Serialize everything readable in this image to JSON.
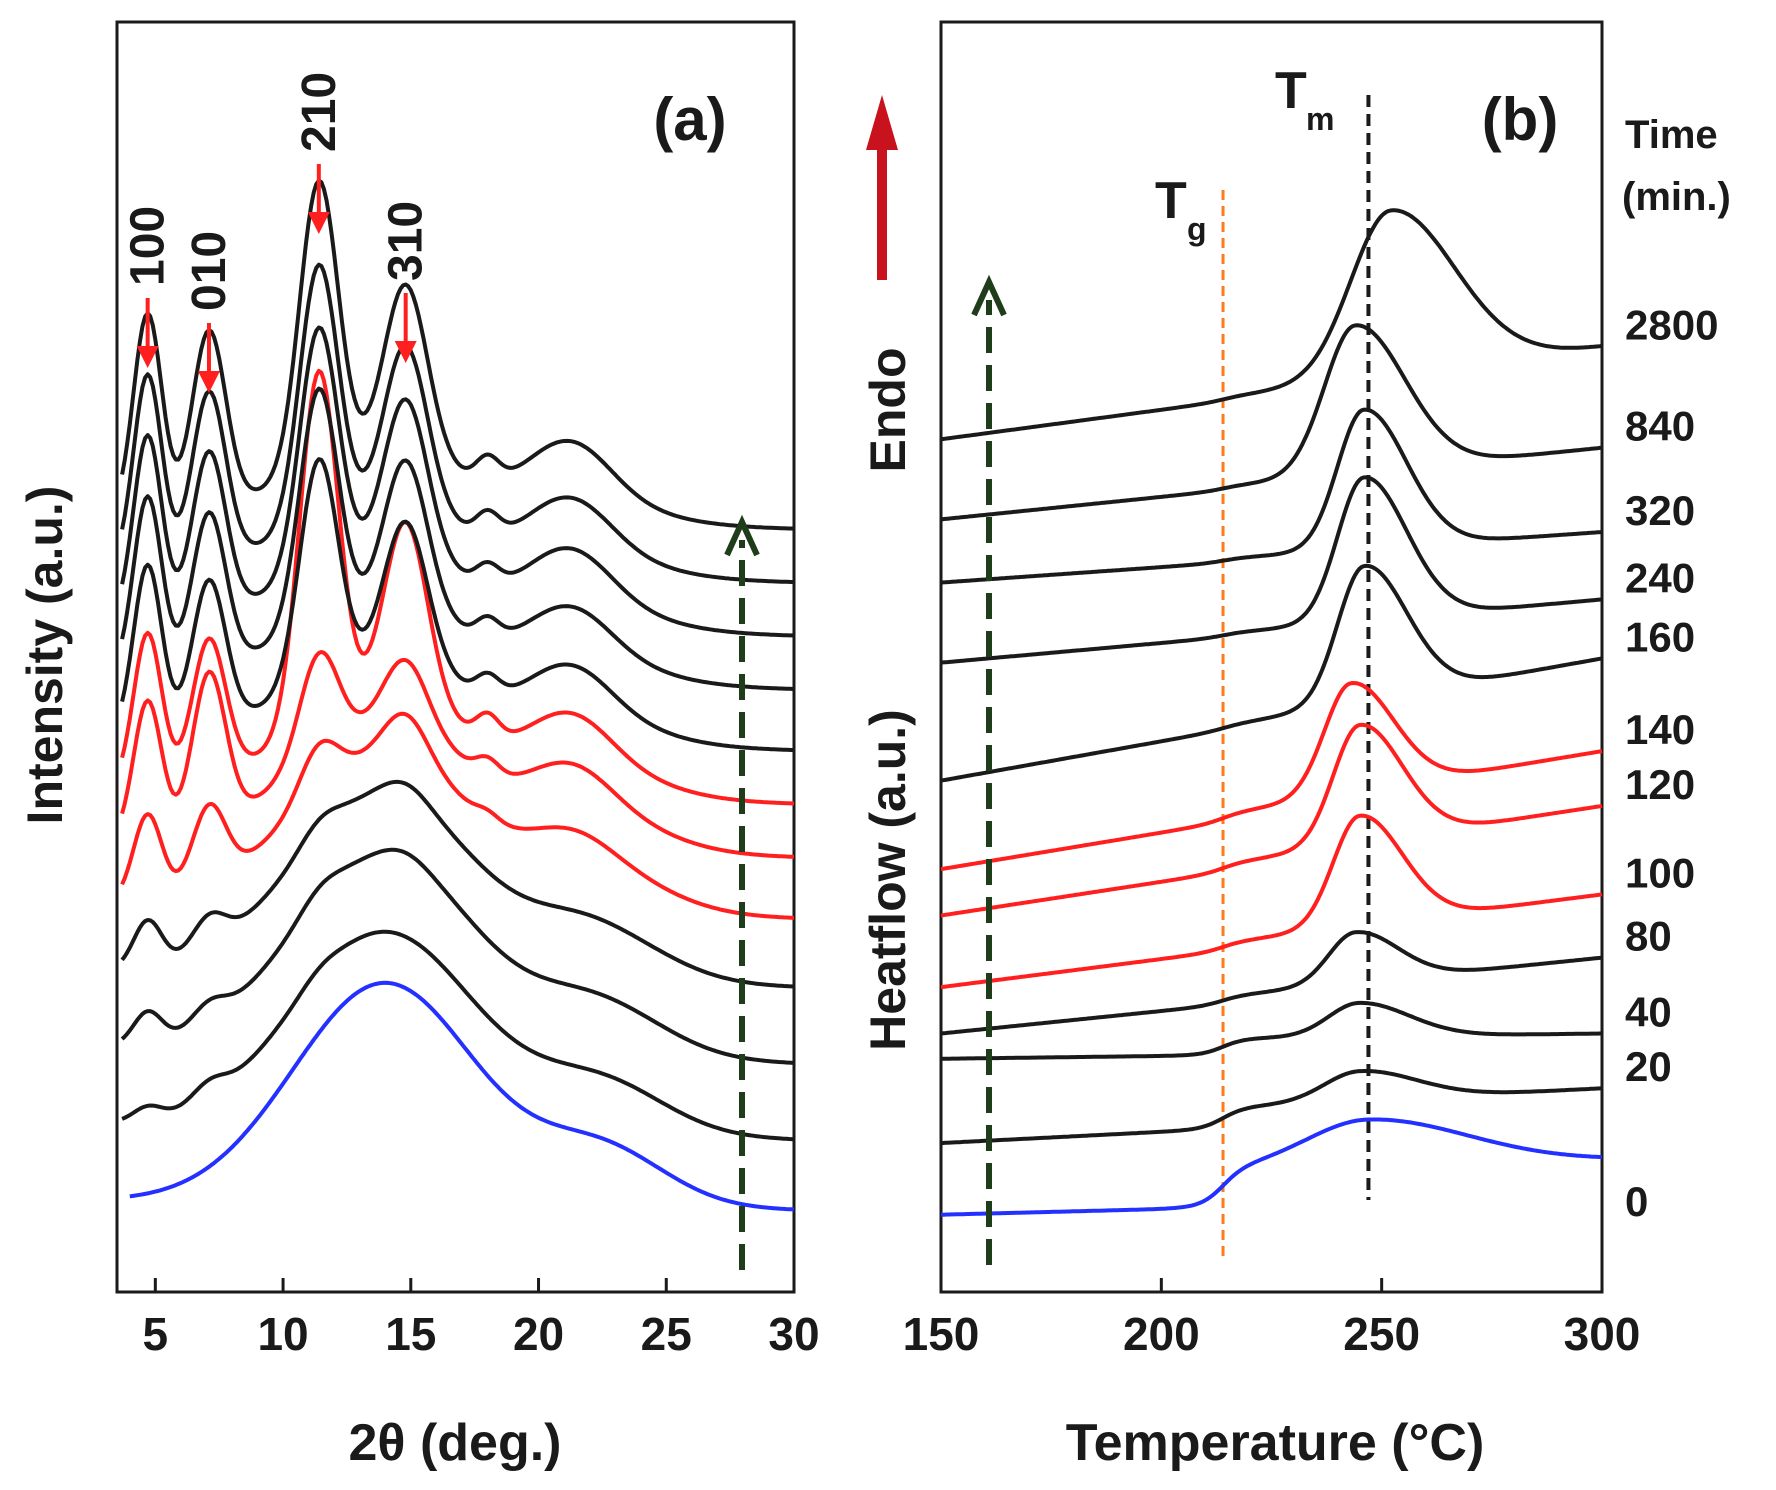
{
  "colors": {
    "black": "#1a1a1a",
    "red": "#ff1f1f",
    "blue": "#2330ff",
    "orange": "#ff7a1a",
    "green": "#1f3d1a",
    "endo_arrow": "#c8121e"
  },
  "chart_data": [
    {
      "type": "line",
      "panel_label": "(a)",
      "xlabel": "2θ (deg.)",
      "ylabel": "Intensity (a.u.)",
      "xlim": [
        3.5,
        30
      ],
      "xticks": [
        "5",
        "10",
        "15",
        "20",
        "25",
        "30"
      ],
      "xtick_values": [
        5,
        10,
        15,
        20,
        25,
        30
      ],
      "peak_labels": [
        {
          "text": "100",
          "x": 4.7
        },
        {
          "text": "010",
          "x": 7.1
        },
        {
          "text": "210",
          "x": 11.4
        },
        {
          "text": "310",
          "x": 14.8
        }
      ],
      "peak_positions": [
        4.7,
        7.1,
        11.4,
        14.8,
        18.0,
        21.2
      ],
      "note": "Stacked XRD patterns, bottom to top, offsets and amplitudes in arbitrary units",
      "series": [
        {
          "index": 0,
          "color": "blue",
          "offset": 0.4,
          "amp": {
            "amorphous": 1.45,
            "p100": 0.0,
            "p010": 0.0,
            "p210": 0.0,
            "p310": 0.0,
            "p180": 0.0,
            "p212": 0.0
          }
        },
        {
          "index": 1,
          "color": "black",
          "offset": 0.9,
          "amp": {
            "amorphous": 1.3,
            "p100": 0.08,
            "p010": 0.1,
            "p210": 0.05,
            "p310": 0.0,
            "p180": 0.0,
            "p212": 0.0
          }
        },
        {
          "index": 2,
          "color": "black",
          "offset": 1.4,
          "amp": {
            "amorphous": 1.3,
            "p100": 0.2,
            "p010": 0.12,
            "p210": 0.08,
            "p310": 0.05,
            "p180": 0.0,
            "p212": 0.02
          }
        },
        {
          "index": 3,
          "color": "black",
          "offset": 1.9,
          "amp": {
            "amorphous": 1.2,
            "p100": 0.3,
            "p010": 0.2,
            "p210": 0.1,
            "p310": 0.1,
            "p180": 0.0,
            "p212": 0.05
          }
        },
        {
          "index": 4,
          "color": "red",
          "offset": 2.35,
          "amp": {
            "amorphous": 1.0,
            "p100": 0.55,
            "p010": 0.5,
            "p210": 0.3,
            "p310": 0.3,
            "p180": 0.05,
            "p212": 0.2
          }
        },
        {
          "index": 5,
          "color": "red",
          "offset": 2.75,
          "amp": {
            "amorphous": 0.8,
            "p100": 0.9,
            "p010": 1.0,
            "p210": 0.65,
            "p310": 0.45,
            "p180": 0.1,
            "p212": 0.3
          }
        },
        {
          "index": 6,
          "color": "red",
          "offset": 3.1,
          "amp": {
            "amorphous": 0.6,
            "p100": 1.0,
            "p010": 0.9,
            "p210": 2.3,
            "p310": 1.2,
            "p180": 0.15,
            "p212": 0.35
          }
        },
        {
          "index": 7,
          "color": "black",
          "offset": 3.45,
          "amp": {
            "amorphous": 0.5,
            "p100": 1.1,
            "p010": 0.95,
            "p210": 1.45,
            "p310": 0.95,
            "p180": 0.12,
            "p212": 0.35
          }
        },
        {
          "index": 8,
          "color": "black",
          "offset": 3.85,
          "amp": {
            "amorphous": 0.45,
            "p100": 1.15,
            "p010": 1.0,
            "p210": 1.55,
            "p310": 1.0,
            "p180": 0.12,
            "p212": 0.35
          }
        },
        {
          "index": 9,
          "color": "black",
          "offset": 4.2,
          "amp": {
            "amorphous": 0.45,
            "p100": 1.2,
            "p010": 1.05,
            "p210": 1.6,
            "p310": 1.05,
            "p180": 0.12,
            "p212": 0.38
          }
        },
        {
          "index": 10,
          "color": "black",
          "offset": 4.55,
          "amp": {
            "amorphous": 0.4,
            "p100": 1.25,
            "p010": 1.1,
            "p210": 1.7,
            "p310": 1.1,
            "p180": 0.14,
            "p212": 0.38
          }
        },
        {
          "index": 11,
          "color": "black",
          "offset": 4.9,
          "amp": {
            "amorphous": 0.4,
            "p100": 1.3,
            "p010": 1.15,
            "p210": 1.9,
            "p310": 1.15,
            "p180": 0.15,
            "p212": 0.4
          }
        }
      ],
      "ylim": [
        0,
        8.0
      ]
    },
    {
      "type": "line",
      "panel_label": "(b)",
      "xlabel": "Temperature (°C)",
      "ylabel": "Heatflow (a.u.)",
      "endo_label": "Endo",
      "xlim": [
        150,
        300
      ],
      "xticks": [
        "150",
        "200",
        "250",
        "300"
      ],
      "xtick_values": [
        150,
        200,
        250,
        300
      ],
      "tg_label": "T",
      "tg_sub": "g",
      "tg_value": 214,
      "tm_label": "T",
      "tm_sub": "m",
      "tm_value": 247,
      "time_header": [
        "Time",
        "(min.)"
      ],
      "ylim": [
        0,
        14
      ],
      "series": [
        {
          "name": "0",
          "color": "blue",
          "y_left": 0.3,
          "y_right": 0.95,
          "melt_amp": 0.55,
          "melt_center": 247,
          "melt_width": 14,
          "step": 0.45
        },
        {
          "name": "20",
          "color": "black",
          "y_left": 1.15,
          "y_right": 1.8,
          "melt_amp": 0.35,
          "melt_center": 245,
          "melt_width": 8,
          "step": 0.25
        },
        {
          "name": "40",
          "color": "black",
          "y_left": 2.15,
          "y_right": 2.45,
          "melt_amp": 0.4,
          "melt_center": 245,
          "melt_width": 7,
          "step": 0.2
        },
        {
          "name": "80",
          "color": "black",
          "y_left": 2.45,
          "y_right": 3.35,
          "melt_amp": 0.6,
          "melt_center": 244,
          "melt_width": 6,
          "step": 0.1
        },
        {
          "name": "100",
          "color": "red",
          "y_left": 3.0,
          "y_right": 4.1,
          "melt_amp": 1.3,
          "melt_center": 245,
          "melt_width": 6,
          "step": 0.1
        },
        {
          "name": "120",
          "color": "red",
          "y_left": 3.85,
          "y_right": 5.15,
          "melt_amp": 1.4,
          "melt_center": 245,
          "melt_width": 6,
          "step": 0.1
        },
        {
          "name": "140",
          "color": "red",
          "y_left": 4.4,
          "y_right": 5.8,
          "melt_amp": 1.3,
          "melt_center": 243,
          "melt_width": 6,
          "step": 0.1
        },
        {
          "name": "160",
          "color": "black",
          "y_left": 5.45,
          "y_right": 6.9,
          "melt_amp": 1.6,
          "melt_center": 246,
          "melt_width": 6,
          "step": 0.05
        },
        {
          "name": "240",
          "color": "black",
          "y_left": 6.85,
          "y_right": 7.6,
          "melt_amp": 1.7,
          "melt_center": 246,
          "melt_width": 6,
          "step": 0.05
        },
        {
          "name": "320",
          "color": "black",
          "y_left": 7.8,
          "y_right": 8.4,
          "melt_amp": 1.65,
          "melt_center": 246,
          "melt_width": 6,
          "step": 0.05
        },
        {
          "name": "840",
          "color": "black",
          "y_left": 8.55,
          "y_right": 9.4,
          "melt_amp": 1.75,
          "melt_center": 244,
          "melt_width": 7,
          "step": 0.05
        },
        {
          "name": "2800",
          "color": "black",
          "y_left": 9.5,
          "y_right": 10.6,
          "melt_amp": 1.95,
          "melt_center": 252,
          "melt_width": 9,
          "step": 0.05
        }
      ]
    }
  ]
}
